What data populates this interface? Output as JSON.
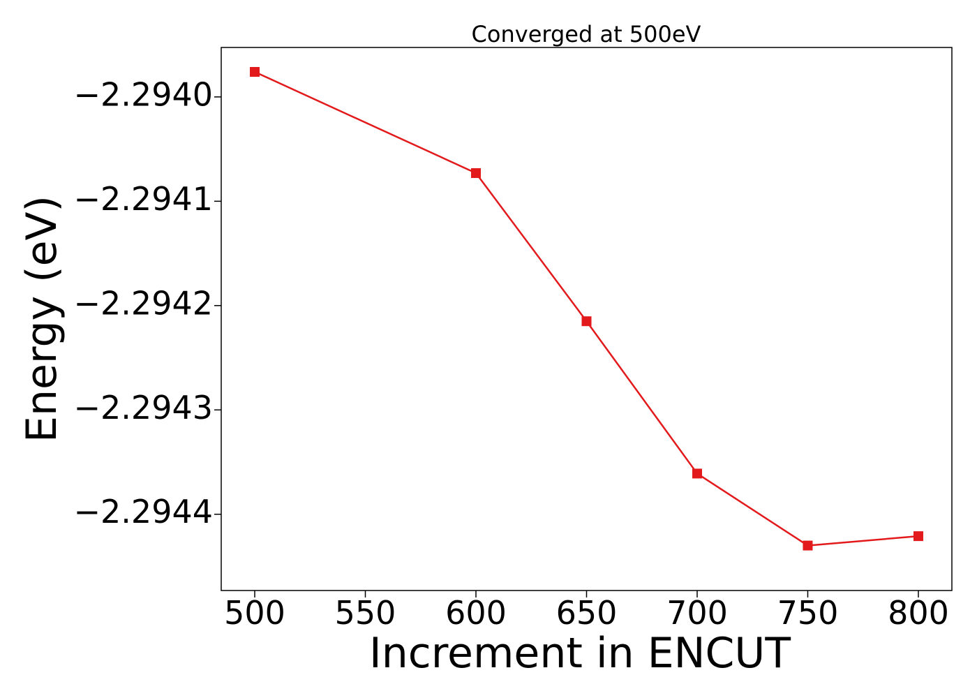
{
  "chart_data": {
    "type": "line",
    "title": "Converged at 500eV",
    "xlabel": "Increment in ENCUT",
    "ylabel": "Energy (eV)",
    "x": [
      500,
      600,
      650,
      700,
      750,
      800
    ],
    "series": [
      {
        "values": [
          -2.293976,
          -2.294073,
          -2.294215,
          -2.294361,
          -2.29443,
          -2.294421
        ],
        "color": "#e31a1c",
        "marker": "square"
      }
    ],
    "xticks": [
      500,
      550,
      600,
      650,
      700,
      750,
      800
    ],
    "xtick_labels": [
      "500",
      "550",
      "600",
      "650",
      "700",
      "750",
      "800"
    ],
    "yticks": [
      -2.294,
      -2.2941,
      -2.2942,
      -2.2943,
      -2.2944
    ],
    "ytick_labels": [
      "−2.2940",
      "−2.2941",
      "−2.2942",
      "−2.2943",
      "−2.2944"
    ],
    "xlim": [
      484.85,
      815.15
    ],
    "ylim": [
      -2.2944731,
      -2.2939526
    ],
    "grid": false,
    "legend": "none"
  }
}
